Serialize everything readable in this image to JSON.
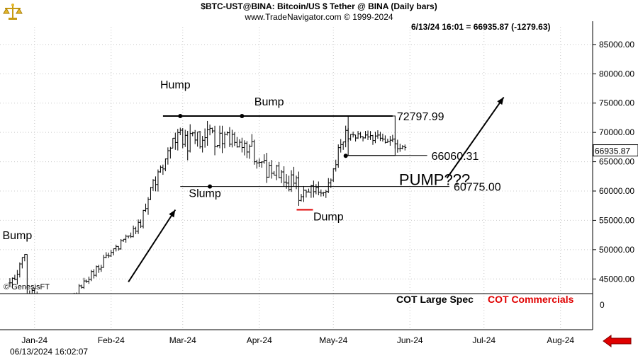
{
  "header": {
    "title": "$BTC-UST@BINA:  Bitcoin/US $ Tether @ BINA  (Daily bars)",
    "subtitle": "www.TradeNavigator.com © 1999-2024",
    "quote": "6/13/24 16:01 = 66935.87 (-1279.63)",
    "timestamp": "06/13/2024 16:02:07",
    "copyright": "© GenesisFT"
  },
  "cot": {
    "large_spec": "COT Large Spec",
    "commercials": "COT Commercials"
  },
  "colors": {
    "accent_red": "#e00000",
    "grid": "#c8c8c8",
    "bars": "#000000"
  },
  "icons": {
    "logo": "scale-logo-icon",
    "back": "red-left-arrow-icon"
  },
  "chart_data": {
    "type": "ohlc",
    "title": "$BTC-UST@BINA:  Bitcoin/US $ Tether @ BINA  (Daily bars)",
    "x_range": [
      "2024-01-01",
      "2024-08-28"
    ],
    "y_range": [
      42500,
      88000
    ],
    "x_tick_labels": [
      {
        "label": "Jan-24",
        "date": "2024-01-15"
      },
      {
        "label": "Feb-24",
        "date": "2024-02-15"
      },
      {
        "label": "Mar-24",
        "date": "2024-03-15"
      },
      {
        "label": "Apr-24",
        "date": "2024-04-15"
      },
      {
        "label": "May-24",
        "date": "2024-05-15"
      },
      {
        "label": "Jun-24",
        "date": "2024-06-15"
      },
      {
        "label": "Jul-24",
        "date": "2024-07-15"
      },
      {
        "label": "Aug-24",
        "date": "2024-08-15"
      }
    ],
    "y_ticks": [
      45000,
      50000,
      55000,
      60000,
      65000,
      70000,
      75000,
      80000,
      85000
    ],
    "y_tick_labels": [
      "45000.00",
      "50000.00",
      "55000.00",
      "60000.00",
      "65000.00",
      "70000.00",
      "75000.00",
      "80000.00",
      "85000.00"
    ],
    "cot_zero_label": "0",
    "last_price_label": "66935.87",
    "last_price": 66935.87,
    "grid": true,
    "price_segments": [
      {
        "from": "2024-01-05",
        "to": "2024-01-11",
        "start": 44500,
        "end": 48500,
        "vol": 0.02
      },
      {
        "from": "2024-01-12",
        "to": "2024-01-24",
        "start": 42700,
        "end": 39800,
        "vol": 0.02
      },
      {
        "from": "2024-01-25",
        "to": "2024-02-13",
        "start": 40000,
        "end": 48500,
        "vol": 0.015
      },
      {
        "from": "2024-02-14",
        "to": "2024-02-27",
        "start": 49000,
        "end": 54500,
        "vol": 0.012
      },
      {
        "from": "2024-02-28",
        "to": "2024-03-14",
        "start": 57000,
        "end": 71500,
        "vol": 0.02
      },
      {
        "from": "2024-03-15",
        "to": "2024-03-31",
        "start": 68000,
        "end": 69500,
        "vol": 0.025
      },
      {
        "from": "2024-04-01",
        "to": "2024-04-12",
        "start": 69000,
        "end": 67500,
        "vol": 0.02
      },
      {
        "from": "2024-04-13",
        "to": "2024-04-30",
        "start": 65000,
        "end": 61000,
        "vol": 0.025
      },
      {
        "from": "2024-05-01",
        "to": "2024-05-14",
        "start": 58800,
        "end": 61500,
        "vol": 0.02
      },
      {
        "from": "2024-05-15",
        "to": "2024-05-20",
        "start": 64000,
        "end": 70500,
        "vol": 0.02
      },
      {
        "from": "2024-05-21",
        "to": "2024-06-08",
        "start": 69500,
        "end": 69000,
        "vol": 0.012
      },
      {
        "from": "2024-06-09",
        "to": "2024-06-13",
        "start": 68000,
        "end": 66935.87,
        "vol": 0.012
      }
    ],
    "levels": [
      {
        "label": "72797.99",
        "value": 72797.99,
        "from": "2024-03-07",
        "to": "2024-06-08"
      },
      {
        "label": "66060.31",
        "value": 66060.31,
        "from": "2024-05-20",
        "to": "2024-06-22"
      },
      {
        "label": "60775.00",
        "value": 60775.0,
        "from": "2024-03-14",
        "to": "2024-07-01"
      }
    ],
    "annotations": [
      {
        "text": "Hump",
        "date": "2024-03-12",
        "price": 77500
      },
      {
        "text": "Bump",
        "date": "2024-04-19",
        "price": 74600
      },
      {
        "text": "Slump",
        "date": "2024-03-24",
        "price": 59000
      },
      {
        "text": "Dump",
        "date": "2024-05-13",
        "price": 55000
      },
      {
        "text": "Bump",
        "date": "2024-01-08",
        "price": 51800
      },
      {
        "text": "PUMP???",
        "date": "2024-06-25",
        "price": 61000
      }
    ],
    "swing_points": [
      {
        "date": "2024-03-14",
        "price": 72800
      },
      {
        "date": "2024-04-08",
        "price": 72800
      },
      {
        "date": "2024-03-26",
        "price": 60775
      },
      {
        "date": "2024-05-20",
        "price": 66000
      }
    ],
    "trend_arrows": [
      {
        "from_date": "2024-02-22",
        "from_price": 44500,
        "to_date": "2024-03-12",
        "to_price": 56800
      },
      {
        "from_date": "2024-06-30",
        "from_price": 62200,
        "to_date": "2024-07-23",
        "to_price": 76000
      }
    ],
    "range_box": {
      "from_date": "2024-05-21",
      "to_date": "2024-06-09",
      "top": 72797.99,
      "bottom": 66060.31
    },
    "dump_marker": {
      "date": "2024-05-01",
      "price": 56800
    }
  }
}
